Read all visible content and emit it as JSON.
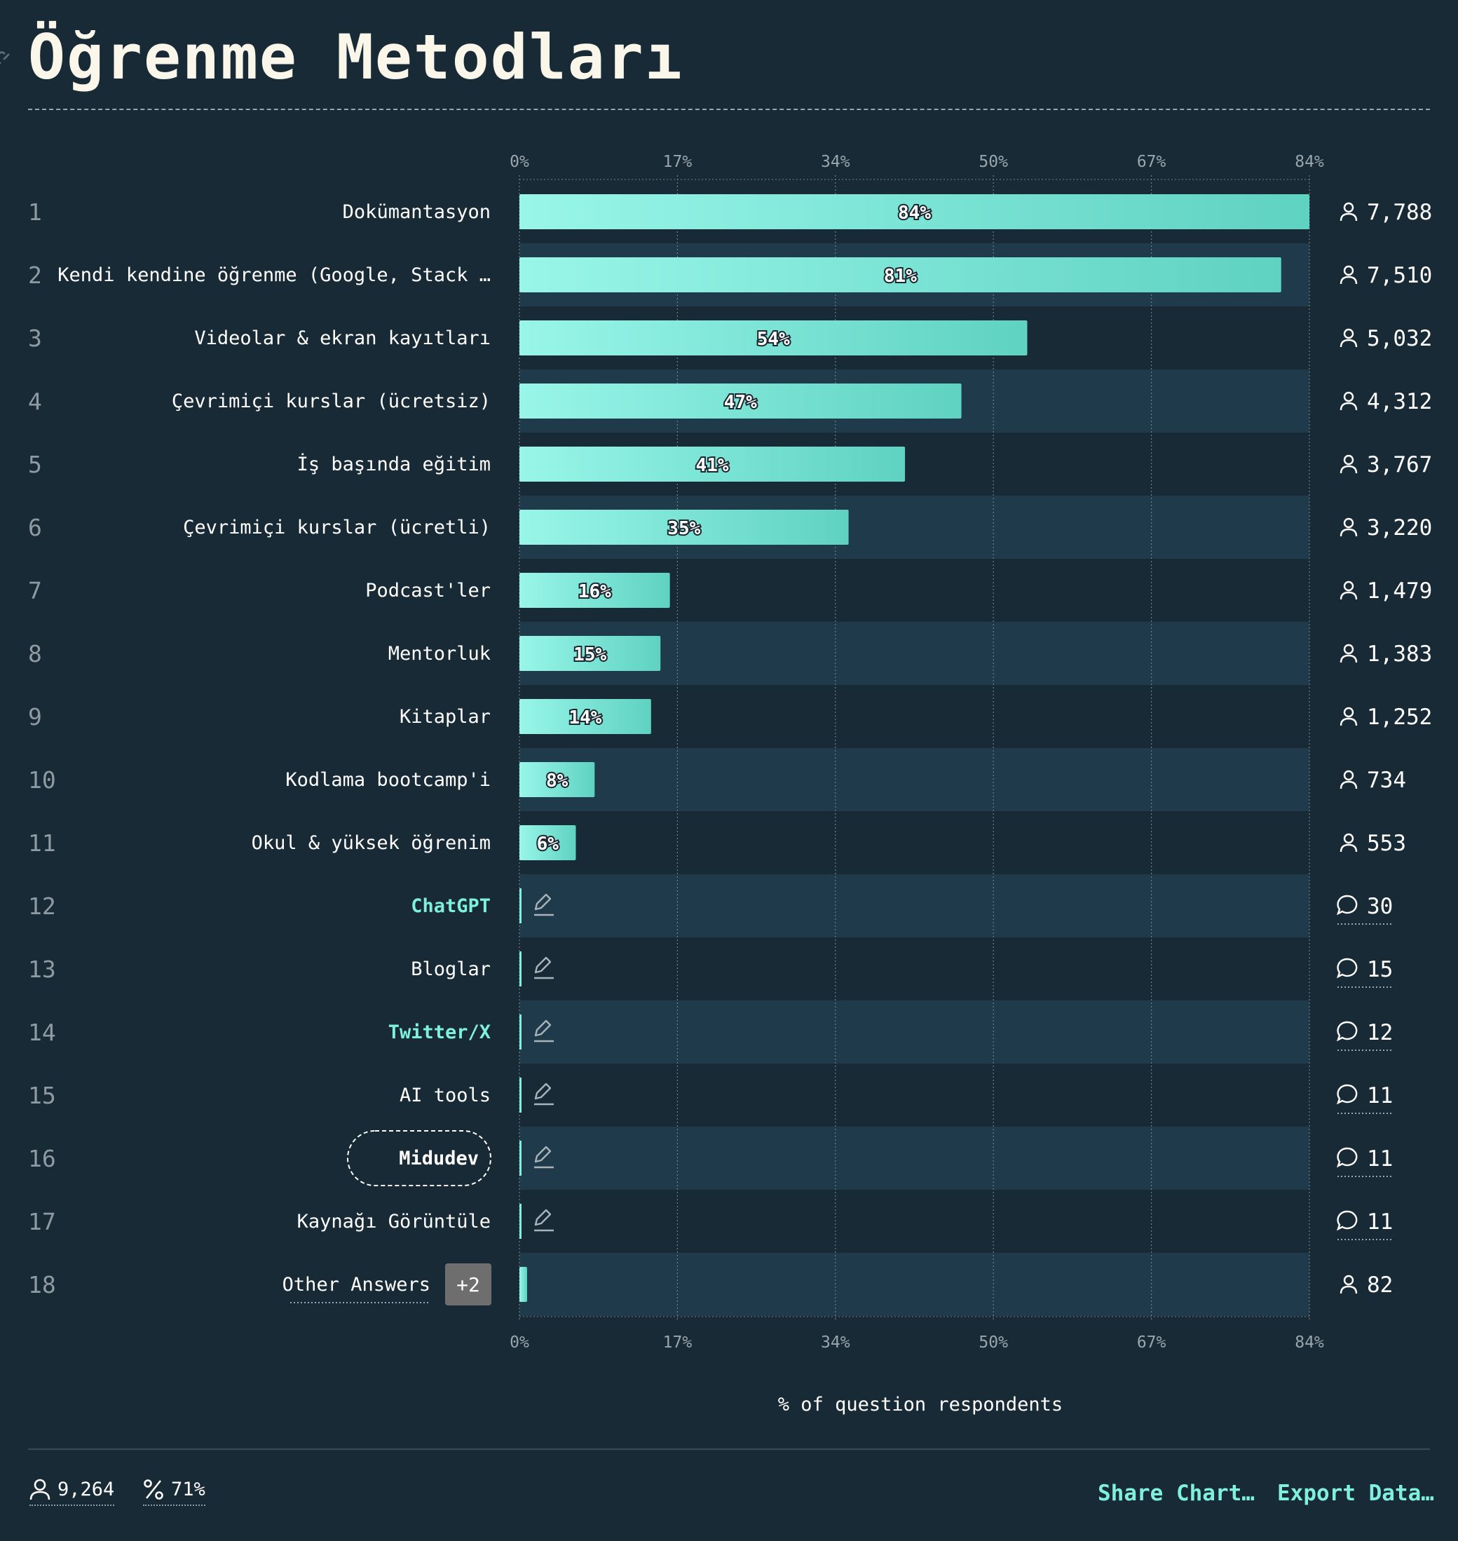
{
  "title": "Öğrenme Metodları",
  "footer": {
    "respondents": "9,264",
    "percent": "71%",
    "share_label": "Share Chart…",
    "export_label": "Export Data…"
  },
  "colors": {
    "bar_start": "#98f6e8",
    "bar_end": "#5fd2c2",
    "accent": "#7ff0de",
    "row_band": "#1f3a4a"
  },
  "chart_data": {
    "type": "bar",
    "orientation": "horizontal",
    "xlabel": "% of question respondents",
    "xlim": [
      0,
      84
    ],
    "ticks": [
      "0%",
      "17%",
      "34%",
      "50%",
      "67%",
      "84%"
    ],
    "grid": true,
    "rows": [
      {
        "rank": "1",
        "label": "Dokümantasyon",
        "value": 84,
        "value_label": "84%",
        "count": "7,788",
        "count_icon": "person-icon"
      },
      {
        "rank": "2",
        "label": "Kendi kendine öğrenme (Google, Stack …",
        "value": 81,
        "value_label": "81%",
        "count": "7,510",
        "count_icon": "person-icon"
      },
      {
        "rank": "3",
        "label": "Videolar & ekran kayıtları",
        "value": 54,
        "value_label": "54%",
        "count": "5,032",
        "count_icon": "person-icon"
      },
      {
        "rank": "4",
        "label": "Çevrimiçi kurslar (ücretsiz)",
        "value": 47,
        "value_label": "47%",
        "count": "4,312",
        "count_icon": "person-icon"
      },
      {
        "rank": "5",
        "label": "İş başında eğitim",
        "value": 41,
        "value_label": "41%",
        "count": "3,767",
        "count_icon": "person-icon"
      },
      {
        "rank": "6",
        "label": "Çevrimiçi kurslar (ücretli)",
        "value": 35,
        "value_label": "35%",
        "count": "3,220",
        "count_icon": "person-icon"
      },
      {
        "rank": "7",
        "label": "Podcast'ler",
        "value": 16,
        "value_label": "16%",
        "count": "1,479",
        "count_icon": "person-icon"
      },
      {
        "rank": "8",
        "label": "Mentorluk",
        "value": 15,
        "value_label": "15%",
        "count": "1,383",
        "count_icon": "person-icon"
      },
      {
        "rank": "9",
        "label": "Kitaplar",
        "value": 14,
        "value_label": "14%",
        "count": "1,252",
        "count_icon": "person-icon"
      },
      {
        "rank": "10",
        "label": "Kodlama bootcamp'i",
        "value": 8,
        "value_label": "8%",
        "count": "734",
        "count_icon": "person-icon"
      },
      {
        "rank": "11",
        "label": "Okul & yüksek öğrenim",
        "value": 6,
        "value_label": "6%",
        "count": "553",
        "count_icon": "person-icon"
      },
      {
        "rank": "12",
        "label": "ChatGPT",
        "style": "accent",
        "freeform": true,
        "count": "30",
        "count_icon": "comment-icon"
      },
      {
        "rank": "13",
        "label": "Bloglar",
        "freeform": true,
        "count": "15",
        "count_icon": "comment-icon"
      },
      {
        "rank": "14",
        "label": "Twitter/X",
        "style": "accent",
        "freeform": true,
        "count": "12",
        "count_icon": "comment-icon"
      },
      {
        "rank": "15",
        "label": "AI tools",
        "freeform": true,
        "count": "11",
        "count_icon": "comment-icon"
      },
      {
        "rank": "16",
        "label": "Midudev",
        "style": "pill",
        "freeform": true,
        "count": "11",
        "count_icon": "comment-icon"
      },
      {
        "rank": "17",
        "label": "Kaynağı Görüntüle",
        "freeform": true,
        "count": "11",
        "count_icon": "comment-icon"
      },
      {
        "rank": "18",
        "label": "Other Answers",
        "badge": "+2",
        "value": 1,
        "count": "82",
        "count_icon": "person-icon"
      }
    ]
  }
}
